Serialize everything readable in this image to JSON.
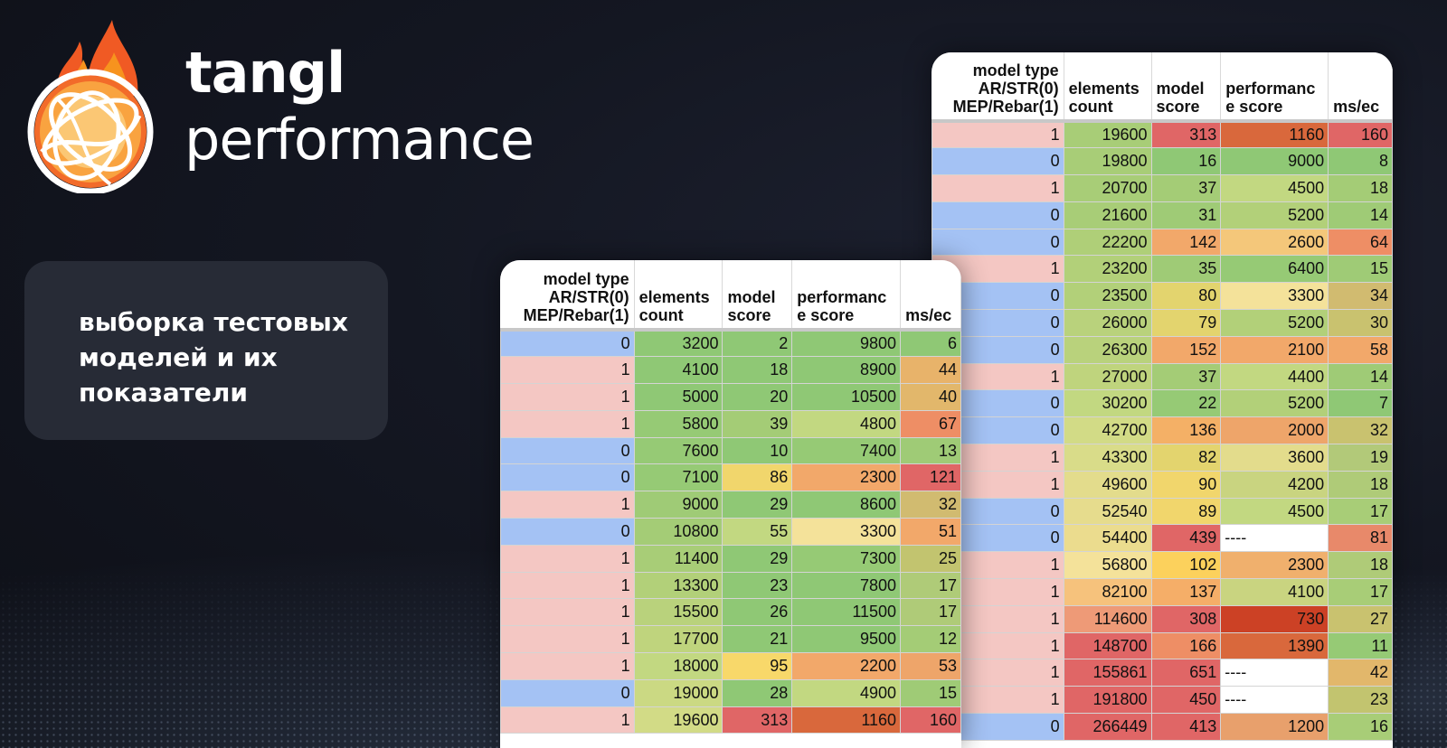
{
  "brand": {
    "name": "tangl",
    "product": "performance"
  },
  "caption": {
    "lines": [
      "выборка тестовых",
      "моделей и их",
      "показатели"
    ]
  },
  "colors": {
    "background": "#141722",
    "caption_card": "#272b36",
    "type_str": "#f4c7c3",
    "type_ar": "#a4c2f4",
    "green": "#8fc875",
    "light_green": "#c2d881",
    "yellow": "#f8d86a",
    "orange": "#f2a86a",
    "red": "#e06666",
    "dark_red": "#d94a2a"
  },
  "table_headers": {
    "col1": [
      "model type",
      "AR/STR(0)",
      "MEP/Rebar(1)"
    ],
    "col2": [
      "elements",
      "count"
    ],
    "col3": [
      "model",
      "score"
    ],
    "col4": [
      "performanc",
      "e score"
    ],
    "col5": [
      "ms/ec"
    ]
  },
  "left_table": {
    "rows": [
      [
        "0",
        "3200",
        "2",
        "9800",
        "6"
      ],
      [
        "1",
        "4100",
        "18",
        "8900",
        "44"
      ],
      [
        "1",
        "5000",
        "20",
        "10500",
        "40"
      ],
      [
        "1",
        "5800",
        "39",
        "4800",
        "67"
      ],
      [
        "0",
        "7600",
        "10",
        "7400",
        "13"
      ],
      [
        "0",
        "7100",
        "86",
        "2300",
        "121"
      ],
      [
        "1",
        "9000",
        "29",
        "8600",
        "32"
      ],
      [
        "0",
        "10800",
        "55",
        "3300",
        "51"
      ],
      [
        "1",
        "11400",
        "29",
        "7300",
        "25"
      ],
      [
        "1",
        "13300",
        "23",
        "7800",
        "17"
      ],
      [
        "1",
        "15500",
        "26",
        "11500",
        "17"
      ],
      [
        "1",
        "17700",
        "21",
        "9500",
        "12"
      ],
      [
        "1",
        "18000",
        "95",
        "2200",
        "53"
      ],
      [
        "0",
        "19000",
        "28",
        "4900",
        "15"
      ],
      [
        "1",
        "19600",
        "313",
        "1160",
        "160"
      ]
    ],
    "colors": [
      [
        "#a4c2f4",
        "#8fc875",
        "#8fc875",
        "#8fc875",
        "#8fc875"
      ],
      [
        "#f4c7c3",
        "#8fc875",
        "#8fc875",
        "#8fc875",
        "#e8b36a"
      ],
      [
        "#f4c7c3",
        "#8fc875",
        "#8fc875",
        "#8fc875",
        "#e2b76b"
      ],
      [
        "#f4c7c3",
        "#96ca75",
        "#a4cc76",
        "#c2d881",
        "#ee8e65"
      ],
      [
        "#a4c2f4",
        "#96ca75",
        "#8fc875",
        "#96ca75",
        "#9fcb76"
      ],
      [
        "#a4c2f4",
        "#96ca75",
        "#f1d66c",
        "#f2a86a",
        "#e06666"
      ],
      [
        "#f4c7c3",
        "#9fcb76",
        "#8fc875",
        "#8fc875",
        "#d1bb70"
      ],
      [
        "#a4c2f4",
        "#a4cc76",
        "#c2d881",
        "#f4e29a",
        "#f2a86a"
      ],
      [
        "#f4c7c3",
        "#a8cd77",
        "#8fc875",
        "#96ca75",
        "#c2c46f"
      ],
      [
        "#f4c7c3",
        "#b2d079",
        "#8fc875",
        "#8fc875",
        "#afcb78"
      ],
      [
        "#f4c7c3",
        "#b9d27c",
        "#8fc875",
        "#8fc875",
        "#afcb78"
      ],
      [
        "#f4c7c3",
        "#bfd47d",
        "#8fc875",
        "#8fc875",
        "#a4cc76"
      ],
      [
        "#f4c7c3",
        "#c2d881",
        "#f8d86a",
        "#f2a86a",
        "#eea56a"
      ],
      [
        "#a4c2f4",
        "#cbd983",
        "#8fc875",
        "#c2d881",
        "#9fcb76"
      ],
      [
        "#f4c7c3",
        "#d2db86",
        "#e06666",
        "#d9683c",
        "#e06666"
      ]
    ]
  },
  "right_table": {
    "rows": [
      [
        "1",
        "19600",
        "313",
        "1160",
        "160"
      ],
      [
        "0",
        "19800",
        "16",
        "9000",
        "8"
      ],
      [
        "1",
        "20700",
        "37",
        "4500",
        "18"
      ],
      [
        "0",
        "21600",
        "31",
        "5200",
        "14"
      ],
      [
        "0",
        "22200",
        "142",
        "2600",
        "64"
      ],
      [
        "1",
        "23200",
        "35",
        "6400",
        "15"
      ],
      [
        "0",
        "23500",
        "80",
        "3300",
        "34"
      ],
      [
        "0",
        "26000",
        "79",
        "5200",
        "30"
      ],
      [
        "0",
        "26300",
        "152",
        "2100",
        "58"
      ],
      [
        "1",
        "27000",
        "37",
        "4400",
        "14"
      ],
      [
        "0",
        "30200",
        "22",
        "5200",
        "7"
      ],
      [
        "0",
        "42700",
        "136",
        "2000",
        "32"
      ],
      [
        "1",
        "43300",
        "82",
        "3600",
        "19"
      ],
      [
        "1",
        "49600",
        "90",
        "4200",
        "18"
      ],
      [
        "0",
        "52540",
        "89",
        "4500",
        "17"
      ],
      [
        "0",
        "54400",
        "439",
        "----",
        "81"
      ],
      [
        "1",
        "56800",
        "102",
        "2300",
        "18"
      ],
      [
        "1",
        "82100",
        "137",
        "4100",
        "17"
      ],
      [
        "1",
        "114600",
        "308",
        "730",
        "27"
      ],
      [
        "1",
        "148700",
        "166",
        "1390",
        "11"
      ],
      [
        "1",
        "155861",
        "651",
        "----",
        "42"
      ],
      [
        "1",
        "191800",
        "450",
        "----",
        "23"
      ],
      [
        "0",
        "266449",
        "413",
        "1200",
        "16"
      ]
    ],
    "colors": [
      [
        "#f4c7c3",
        "#a8cd77",
        "#e06666",
        "#d9683c",
        "#e06666"
      ],
      [
        "#a4c2f4",
        "#a8cd77",
        "#8fc875",
        "#8fc875",
        "#8fc875"
      ],
      [
        "#f4c7c3",
        "#a8cd77",
        "#a4cc76",
        "#c2d881",
        "#a4cc76"
      ],
      [
        "#a4c2f4",
        "#a8cd77",
        "#9fcb76",
        "#b2d079",
        "#9fcb76"
      ],
      [
        "#a4c2f4",
        "#afcf78",
        "#f2a86a",
        "#f4c77a",
        "#ee8e65"
      ],
      [
        "#f4c7c3",
        "#b2d079",
        "#9fcb76",
        "#96ca75",
        "#9fcb76"
      ],
      [
        "#a4c2f4",
        "#b2d079",
        "#e3d46e",
        "#f4e29a",
        "#d1bb70"
      ],
      [
        "#a4c2f4",
        "#b9d27c",
        "#e3d46e",
        "#b2d079",
        "#c9c26f"
      ],
      [
        "#a4c2f4",
        "#b9d27c",
        "#f2a86a",
        "#f2a86a",
        "#f2a86a"
      ],
      [
        "#f4c7c3",
        "#bfd47d",
        "#a4cc76",
        "#c2d881",
        "#9fcb76"
      ],
      [
        "#a4c2f4",
        "#c2d881",
        "#96ca75",
        "#b2d079",
        "#8fc875"
      ],
      [
        "#a4c2f4",
        "#d2db86",
        "#f4b066",
        "#eea56a",
        "#c9c26f"
      ],
      [
        "#f4c7c3",
        "#d9dc89",
        "#e3d46e",
        "#e3dc8c",
        "#b2c979"
      ],
      [
        "#f4c7c3",
        "#e3dc8c",
        "#f1d66c",
        "#c9d480",
        "#afcb78"
      ],
      [
        "#a4c2f4",
        "#e6dc8d",
        "#f1d66c",
        "#c2d881",
        "#a8cd77"
      ],
      [
        "#a4c2f4",
        "#ebdc8e",
        "#e06666",
        "#ffffff",
        "#e8896a"
      ],
      [
        "#f4c7c3",
        "#f4e29a",
        "#fcd15c",
        "#f0b06d",
        "#afcb78"
      ],
      [
        "#f4c7c3",
        "#f6c27c",
        "#f5ae68",
        "#c9d480",
        "#a8cd77"
      ],
      [
        "#f4c7c3",
        "#ee9a77",
        "#e06666",
        "#cc4125",
        "#c9c26f"
      ],
      [
        "#f4c7c3",
        "#e06666",
        "#ee8e65",
        "#d9683c",
        "#96ca75"
      ],
      [
        "#f4c7c3",
        "#e06666",
        "#e06666",
        "#ffffff",
        "#e2b76b"
      ],
      [
        "#f4c7c3",
        "#e06666",
        "#e06666",
        "#ffffff",
        "#c2c46f"
      ],
      [
        "#a4c2f4",
        "#e06666",
        "#e06666",
        "#e8a06c",
        "#a8cd77"
      ]
    ]
  }
}
